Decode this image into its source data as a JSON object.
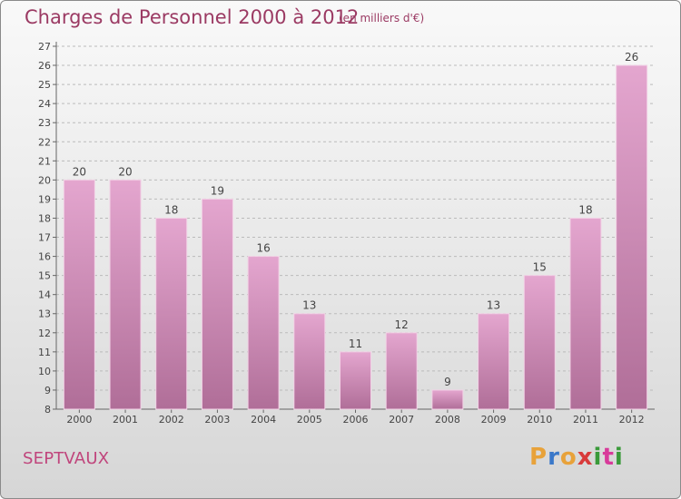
{
  "header": {
    "title": "Charges de Personnel 2000 à 2012",
    "subtitle": "(en milliers d'€)"
  },
  "footer": {
    "commune": "SEPTVAUX",
    "logo_letters": [
      "P",
      "r",
      "o",
      "x",
      "i",
      "t",
      "i"
    ],
    "logo_colors": [
      "#e8a23a",
      "#3a78c9",
      "#e8a23a",
      "#d83a3a",
      "#3a9a3a",
      "#d83a9a",
      "#3a9a3a"
    ]
  },
  "colors": {
    "bar_light": "#e4a6cf",
    "bar_dark": "#b06e98",
    "text": "#444444",
    "grid": "#bbbbbb"
  },
  "chart_data": {
    "type": "bar",
    "title": "Charges de Personnel 2000 à 2012",
    "subtitle": "(en milliers d'€)",
    "categories": [
      "2000",
      "2001",
      "2002",
      "2003",
      "2004",
      "2005",
      "2006",
      "2007",
      "2008",
      "2009",
      "2010",
      "2011",
      "2012"
    ],
    "values": [
      20,
      20,
      18,
      19,
      16,
      13,
      11,
      12,
      9,
      13,
      15,
      18,
      26
    ],
    "value_labels": [
      "20",
      "20",
      "18",
      "19",
      "16",
      "13",
      "11",
      "12",
      "9",
      "13",
      "15",
      "18",
      "26"
    ],
    "ylim": [
      8,
      27
    ],
    "yticks": [
      "8",
      "9",
      "10",
      "11",
      "12",
      "13",
      "14",
      "15",
      "16",
      "17",
      "18",
      "19",
      "20",
      "21",
      "22",
      "23",
      "24",
      "25",
      "26",
      "27"
    ],
    "grid": true,
    "legend": "none"
  }
}
